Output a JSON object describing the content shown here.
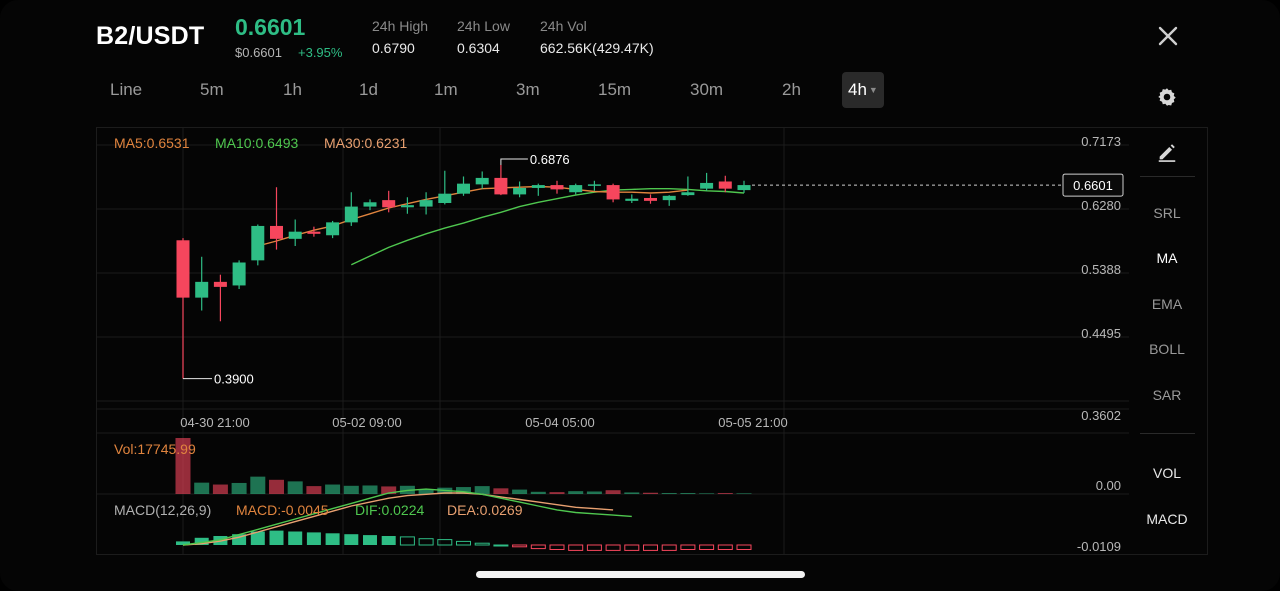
{
  "header": {
    "pair": "B2/USDT",
    "last_price": "0.6601",
    "fiat_price": "$0.6601",
    "change": "+3.95%",
    "stats": [
      {
        "label": "24h High",
        "value": "0.6790"
      },
      {
        "label": "24h Low",
        "value": "0.6304"
      },
      {
        "label": "24h Vol",
        "value": "662.56K(429.47K)"
      }
    ]
  },
  "tabs": [
    "Line",
    "5m",
    "1h",
    "1d",
    "1m",
    "3m",
    "15m",
    "30m",
    "2h",
    "4h"
  ],
  "active_tab": "4h",
  "indicators_main": [
    "SRL",
    "MA",
    "EMA",
    "BOLL",
    "SAR"
  ],
  "active_main_indicator": "MA",
  "indicators_sub": [
    "VOL",
    "MACD"
  ],
  "legend": {
    "ma5": "MA5:0.6531",
    "ma10": "MA10:0.6493",
    "ma30": "MA30:0.6231",
    "vol": "Vol:17745.99",
    "macd_label": "MACD(12,26,9)",
    "macd": "MACD:-0.0045",
    "dif": "DIF:0.0224",
    "dea": "DEA:0.0269"
  },
  "colors": {
    "up": "#2ebd85",
    "down": "#f6465d",
    "ma5": "#e0843e",
    "ma10": "#4fc74f",
    "ma30": "#e8a070",
    "accent": "#2ebd85"
  },
  "chart_data": {
    "type": "candlestick",
    "y_ticks": [
      "0.7173",
      "0.6280",
      "0.5388",
      "0.4495",
      "0.3602"
    ],
    "ylim": [
      0.3602,
      0.7173
    ],
    "x_ticks": [
      "04-30 21:00",
      "05-02 09:00",
      "05-04 05:00",
      "05-05 21:00"
    ],
    "current_price_label": "0.6601",
    "high_marker": "0.6876",
    "low_marker": "0.3900",
    "candles": [
      {
        "o": 0.583,
        "h": 0.586,
        "c": 0.503,
        "l": 0.39
      },
      {
        "o": 0.503,
        "h": 0.56,
        "c": 0.525,
        "l": 0.485
      },
      {
        "o": 0.525,
        "h": 0.535,
        "c": 0.518,
        "l": 0.47
      },
      {
        "o": 0.52,
        "h": 0.555,
        "c": 0.552,
        "l": 0.515
      },
      {
        "o": 0.555,
        "h": 0.605,
        "c": 0.603,
        "l": 0.548
      },
      {
        "o": 0.603,
        "h": 0.657,
        "c": 0.585,
        "l": 0.57
      },
      {
        "o": 0.585,
        "h": 0.612,
        "c": 0.595,
        "l": 0.575
      },
      {
        "o": 0.595,
        "h": 0.602,
        "c": 0.592,
        "l": 0.588
      },
      {
        "o": 0.59,
        "h": 0.61,
        "c": 0.608,
        "l": 0.586
      },
      {
        "o": 0.608,
        "h": 0.65,
        "c": 0.63,
        "l": 0.603
      },
      {
        "o": 0.63,
        "h": 0.64,
        "c": 0.636,
        "l": 0.625
      },
      {
        "o": 0.639,
        "h": 0.652,
        "c": 0.629,
        "l": 0.622
      },
      {
        "o": 0.629,
        "h": 0.643,
        "c": 0.632,
        "l": 0.62
      },
      {
        "o": 0.63,
        "h": 0.65,
        "c": 0.639,
        "l": 0.619
      },
      {
        "o": 0.635,
        "h": 0.68,
        "c": 0.648,
        "l": 0.633
      },
      {
        "o": 0.648,
        "h": 0.672,
        "c": 0.662,
        "l": 0.645
      },
      {
        "o": 0.661,
        "h": 0.679,
        "c": 0.67,
        "l": 0.655
      },
      {
        "o": 0.67,
        "h": 0.688,
        "c": 0.647,
        "l": 0.646
      },
      {
        "o": 0.647,
        "h": 0.665,
        "c": 0.656,
        "l": 0.643
      },
      {
        "o": 0.656,
        "h": 0.662,
        "c": 0.66,
        "l": 0.645
      },
      {
        "o": 0.66,
        "h": 0.666,
        "c": 0.654,
        "l": 0.648
      },
      {
        "o": 0.65,
        "h": 0.662,
        "c": 0.66,
        "l": 0.647
      },
      {
        "o": 0.66,
        "h": 0.666,
        "c": 0.661,
        "l": 0.652
      },
      {
        "o": 0.66,
        "h": 0.662,
        "c": 0.64,
        "l": 0.636
      },
      {
        "o": 0.638,
        "h": 0.647,
        "c": 0.641,
        "l": 0.635
      },
      {
        "o": 0.642,
        "h": 0.647,
        "c": 0.638,
        "l": 0.634
      },
      {
        "o": 0.639,
        "h": 0.646,
        "c": 0.645,
        "l": 0.631
      },
      {
        "o": 0.646,
        "h": 0.672,
        "c": 0.65,
        "l": 0.645
      },
      {
        "o": 0.655,
        "h": 0.677,
        "c": 0.663,
        "l": 0.652
      },
      {
        "o": 0.665,
        "h": 0.673,
        "c": 0.655,
        "l": 0.65
      },
      {
        "o": 0.653,
        "h": 0.666,
        "c": 0.66,
        "l": 0.649
      }
    ],
    "ma5_line": [
      0.575,
      0.582,
      0.59,
      0.597,
      0.603,
      0.612,
      0.62,
      0.628,
      0.634,
      0.64,
      0.645,
      0.65,
      0.655,
      0.656,
      0.657,
      0.658,
      0.657,
      0.654,
      0.651,
      0.65,
      0.65,
      0.649,
      0.65,
      0.653
    ],
    "ma10_line": [
      0.549,
      0.561,
      0.573,
      0.583,
      0.592,
      0.6,
      0.607,
      0.615,
      0.622,
      0.63,
      0.636,
      0.641,
      0.646,
      0.65,
      0.653,
      0.654,
      0.655,
      0.655,
      0.654,
      0.652,
      0.651,
      0.649
    ],
    "volumes": [
      17745.99,
      3600,
      3000,
      3500,
      5500,
      4500,
      4000,
      2500,
      3000,
      2600,
      2700,
      2400,
      2600,
      1500,
      2000,
      2200,
      2500,
      1800,
      1400,
      700,
      600,
      900,
      800,
      1200,
      500,
      400,
      300,
      300,
      200,
      300,
      200
    ],
    "vol_axis_label": "0.00",
    "macd_axis_label": "-0.0109",
    "macd_hist": [
      0.004,
      0.008,
      0.01,
      0.012,
      0.015,
      0.016,
      0.015,
      0.014,
      0.013,
      0.012,
      0.011,
      0.01,
      0.009,
      0.007,
      0.006,
      0.004,
      0.002,
      0.0,
      -0.002,
      -0.004,
      -0.005,
      -0.006,
      -0.006,
      -0.006,
      -0.006,
      -0.006,
      -0.006,
      -0.005,
      -0.005,
      -0.005,
      -0.005
    ],
    "dif_line": [
      0.0,
      0.002,
      0.004,
      0.008,
      0.012,
      0.016,
      0.02,
      0.024,
      0.028,
      0.032,
      0.036,
      0.04,
      0.042,
      0.043,
      0.042,
      0.041,
      0.039,
      0.036,
      0.033,
      0.03,
      0.027,
      0.025,
      0.024,
      0.023,
      0.022
    ],
    "dea_line": [
      0.0,
      0.001,
      0.003,
      0.006,
      0.01,
      0.014,
      0.018,
      0.022,
      0.026,
      0.03,
      0.033,
      0.036,
      0.038,
      0.039,
      0.04,
      0.04,
      0.039,
      0.037,
      0.035,
      0.033,
      0.031,
      0.029,
      0.028,
      0.027
    ]
  }
}
